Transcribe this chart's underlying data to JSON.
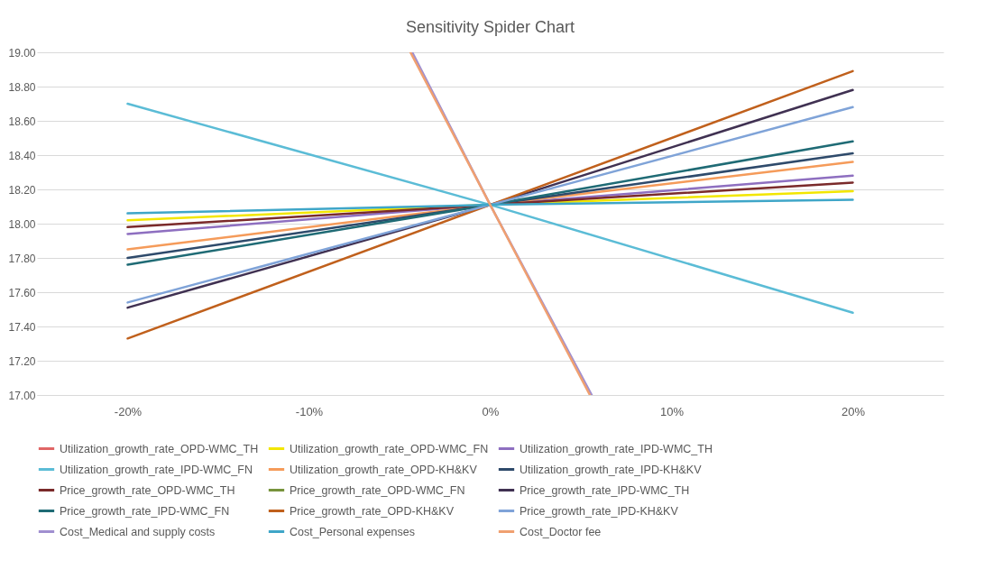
{
  "chart_data": {
    "type": "line",
    "title": "Sensitivity Spider Chart",
    "xlim": [
      -25,
      25
    ],
    "x": [
      -20,
      0,
      20
    ],
    "xticks": [
      {
        "value": -20,
        "label": "-20%"
      },
      {
        "value": -10,
        "label": "-10%"
      },
      {
        "value": 0,
        "label": "0%"
      },
      {
        "value": 10,
        "label": "10%"
      },
      {
        "value": 20,
        "label": "20%"
      }
    ],
    "ylim": [
      17,
      19
    ],
    "yticks": [
      {
        "value": 17,
        "label": "17.00"
      },
      {
        "value": 17.2,
        "label": "17.20"
      },
      {
        "value": 17.4,
        "label": "17.40"
      },
      {
        "value": 17.6,
        "label": "17.60"
      },
      {
        "value": 17.8,
        "label": "17.80"
      },
      {
        "value": 18,
        "label": "18.00"
      },
      {
        "value": 18.2,
        "label": "18.20"
      },
      {
        "value": 18.4,
        "label": "18.40"
      },
      {
        "value": 18.6,
        "label": "18.60"
      },
      {
        "value": 18.8,
        "label": "18.80"
      },
      {
        "value": 19,
        "label": "19.00"
      }
    ],
    "grid": "y",
    "legend": "bottom",
    "marker": "none",
    "line_style": "solid",
    "series": [
      {
        "name": "Utilization_growth_rate_OPD-WMC_TH",
        "color": "#e06666",
        "values": [
          null,
          null,
          null
        ]
      },
      {
        "name": "Utilization_growth_rate_OPD-WMC_FN",
        "color": "#f2e600",
        "values": [
          18.02,
          18.11,
          18.19
        ]
      },
      {
        "name": "Utilization_growth_rate_IPD-WMC_TH",
        "color": "#8e6fc0",
        "values": [
          17.94,
          18.11,
          18.28
        ]
      },
      {
        "name": "Utilization_growth_rate_IPD-WMC_FN",
        "color": "#5bbcd6",
        "values": [
          18.7,
          18.11,
          17.48
        ]
      },
      {
        "name": "Utilization_growth_rate_OPD-KH&KV",
        "color": "#f59b5a",
        "values": [
          17.85,
          18.11,
          18.36
        ]
      },
      {
        "name": "Utilization_growth_rate_IPD-KH&KV",
        "color": "#2e4a6b",
        "values": [
          17.8,
          18.11,
          18.41
        ]
      },
      {
        "name": "Price_growth_rate_OPD-WMC_TH",
        "color": "#7a2a2a",
        "values": [
          17.98,
          18.11,
          18.24
        ]
      },
      {
        "name": "Price_growth_rate_OPD-WMC_FN",
        "color": "#77933c",
        "values": [
          null,
          null,
          null
        ]
      },
      {
        "name": "Price_growth_rate_IPD-WMC_TH",
        "color": "#403152",
        "values": [
          17.51,
          18.11,
          18.78
        ]
      },
      {
        "name": "Price_growth_rate_IPD-WMC_FN",
        "color": "#1f6b75",
        "values": [
          17.76,
          18.11,
          18.48
        ]
      },
      {
        "name": "Price_growth_rate_OPD-KH&KV",
        "color": "#c0601c",
        "values": [
          17.33,
          18.11,
          18.89
        ]
      },
      {
        "name": "Price_growth_rate_IPD-KH&KV",
        "color": "#7fa3d8",
        "values": [
          17.54,
          18.11,
          18.68
        ]
      },
      {
        "name": "Cost_Medical and supply costs",
        "color": "#a08fd0",
        "x": [
          -4.3,
          0,
          5.6
        ],
        "values": [
          19,
          18.11,
          17
        ]
      },
      {
        "name": "Cost_Personal expenses",
        "color": "#3fa6c8",
        "values": [
          18.06,
          18.11,
          18.14
        ]
      },
      {
        "name": "Cost_Doctor fee",
        "color": "#f0a070",
        "x": [
          -4.4,
          0,
          5.5
        ],
        "values": [
          19,
          18.11,
          17
        ]
      }
    ]
  }
}
